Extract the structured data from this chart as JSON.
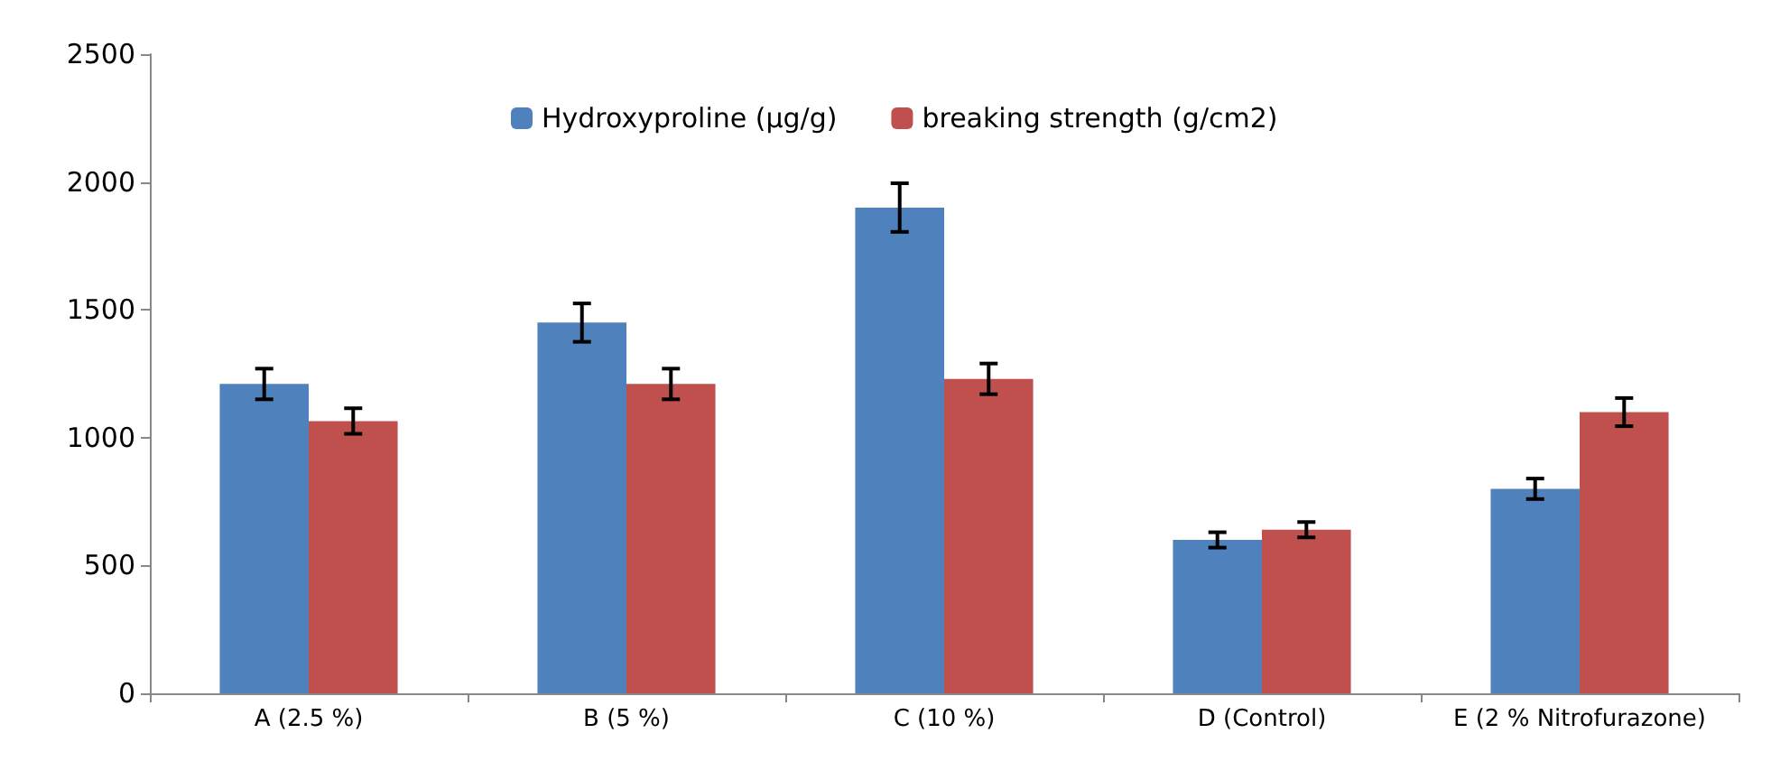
{
  "chart_data": {
    "type": "bar",
    "categories": [
      "A (2.5 %)",
      "B (5 %)",
      "C (10 %)",
      "D (Control)",
      "E (2 % Nitrofurazone)"
    ],
    "series": [
      {
        "name": "Hydroxyproline (µg/g)",
        "color": "#4f81bd",
        "values": [
          1210,
          1450,
          1900,
          600,
          800
        ],
        "errors": [
          60,
          75,
          95,
          30,
          40
        ]
      },
      {
        "name": "breaking strength (g/cm2)",
        "color": "#c0504d",
        "values": [
          1065,
          1210,
          1230,
          640,
          1100
        ],
        "errors": [
          50,
          60,
          60,
          30,
          55
        ]
      }
    ],
    "ylim": [
      0,
      2500
    ],
    "yticks": [
      0,
      500,
      1000,
      1500,
      2000,
      2500
    ],
    "grid": false,
    "legend": "top"
  }
}
